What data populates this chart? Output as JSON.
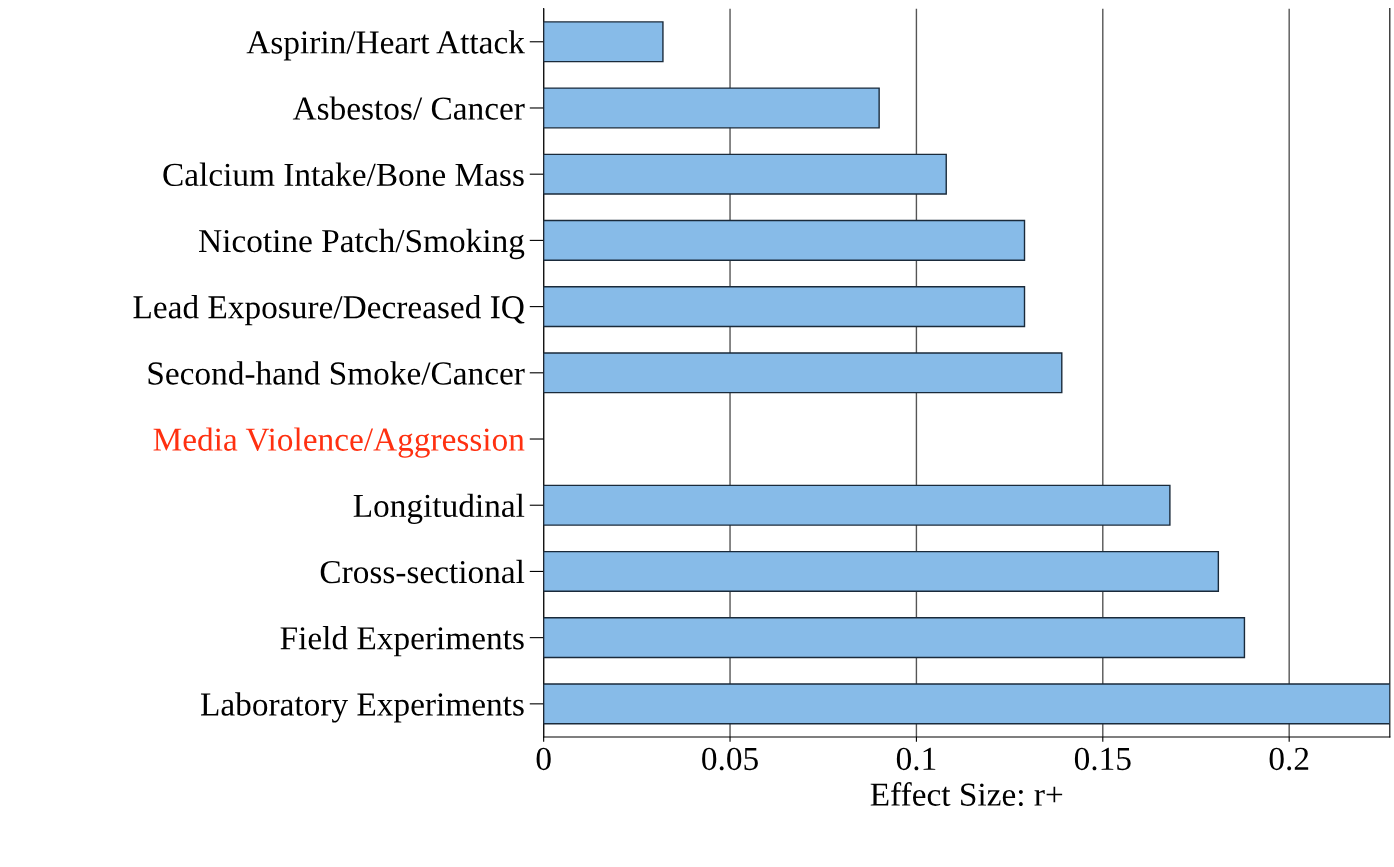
{
  "chart_data": {
    "type": "bar",
    "orientation": "horizontal",
    "categories": [
      "Aspirin/Heart Attack",
      "Asbestos/ Cancer",
      "Calcium Intake/Bone Mass",
      "Nicotine Patch/Smoking",
      "Lead Exposure/Decreased IQ",
      "Second-hand Smoke/Cancer",
      "Media Violence/Aggression",
      "Longitudinal",
      "Cross-sectional",
      "Field Experiments",
      "Laboratory Experiments"
    ],
    "values": [
      0.032,
      0.09,
      0.108,
      0.129,
      0.129,
      0.139,
      null,
      0.168,
      0.181,
      0.188,
      0.227
    ],
    "colors": [
      "#87bbe8",
      "#87bbe8",
      "#87bbe8",
      "#87bbe8",
      "#87bbe8",
      "#87bbe8",
      "#ff3010",
      "#87bbe8",
      "#87bbe8",
      "#87bbe8",
      "#87bbe8"
    ],
    "xlabel": "Effect Size: r+",
    "xlim": [
      0,
      0.227
    ],
    "xticks": [
      0,
      0.05,
      0.1,
      0.15,
      0.2
    ],
    "grid": "x"
  }
}
